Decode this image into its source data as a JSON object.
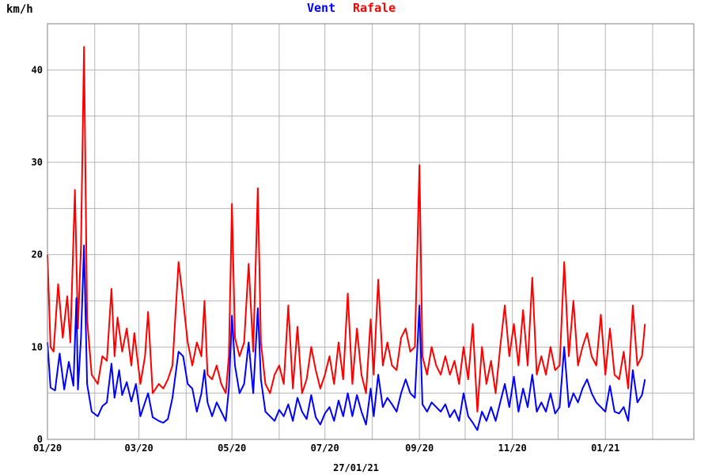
{
  "chart_data": {
    "type": "line",
    "ylabel": "km/h",
    "ylim": [
      0,
      45
    ],
    "yticks": [
      0,
      10,
      20,
      30,
      40
    ],
    "xlim": [
      "2020-01-01",
      "2021-02-28"
    ],
    "xticks": [
      {
        "date": "2020-01-01",
        "label": "01/20"
      },
      {
        "date": "2020-03-01",
        "label": "03/20"
      },
      {
        "date": "2020-05-01",
        "label": "05/20"
      },
      {
        "date": "2020-07-01",
        "label": "07/20"
      },
      {
        "date": "2020-09-01",
        "label": "09/20"
      },
      {
        "date": "2020-11-01",
        "label": "11/20"
      },
      {
        "date": "2021-01-01",
        "label": "01/21"
      }
    ],
    "date_label": "27/01/21",
    "grid": true,
    "series": [
      {
        "name": "Vent",
        "color": "#0000ff",
        "points": [
          [
            "2020-01-01",
            10.5
          ],
          [
            "2020-01-03",
            5.6
          ],
          [
            "2020-01-06",
            5.3
          ],
          [
            "2020-01-09",
            9.3
          ],
          [
            "2020-01-12",
            5.4
          ],
          [
            "2020-01-15",
            8.4
          ],
          [
            "2020-01-18",
            5.8
          ],
          [
            "2020-01-20",
            15.3
          ],
          [
            "2020-01-21",
            5.4
          ],
          [
            "2020-01-23",
            11.0
          ],
          [
            "2020-01-25",
            21.0
          ],
          [
            "2020-01-27",
            6.0
          ],
          [
            "2020-01-30",
            3.0
          ],
          [
            "2020-02-03",
            2.5
          ],
          [
            "2020-02-06",
            3.6
          ],
          [
            "2020-02-09",
            4.0
          ],
          [
            "2020-02-12",
            8.2
          ],
          [
            "2020-02-14",
            4.5
          ],
          [
            "2020-02-17",
            7.5
          ],
          [
            "2020-02-19",
            4.8
          ],
          [
            "2020-02-22",
            6.2
          ],
          [
            "2020-02-25",
            4.1
          ],
          [
            "2020-02-28",
            6.0
          ],
          [
            "2020-03-02",
            2.5
          ],
          [
            "2020-03-05",
            4.0
          ],
          [
            "2020-03-07",
            5.0
          ],
          [
            "2020-03-10",
            2.4
          ],
          [
            "2020-03-14",
            2.0
          ],
          [
            "2020-03-17",
            1.8
          ],
          [
            "2020-03-20",
            2.2
          ],
          [
            "2020-03-23",
            4.5
          ],
          [
            "2020-03-27",
            9.5
          ],
          [
            "2020-03-30",
            9.0
          ],
          [
            "2020-04-02",
            6.0
          ],
          [
            "2020-04-05",
            5.5
          ],
          [
            "2020-04-08",
            3.0
          ],
          [
            "2020-04-11",
            5.0
          ],
          [
            "2020-04-13",
            7.5
          ],
          [
            "2020-04-15",
            4.0
          ],
          [
            "2020-04-18",
            2.5
          ],
          [
            "2020-04-21",
            4.0
          ],
          [
            "2020-04-24",
            3.0
          ],
          [
            "2020-04-27",
            2.0
          ],
          [
            "2020-04-29",
            5.5
          ],
          [
            "2020-05-01",
            13.4
          ],
          [
            "2020-05-03",
            8.0
          ],
          [
            "2020-05-06",
            5.0
          ],
          [
            "2020-05-09",
            6.0
          ],
          [
            "2020-05-12",
            10.5
          ],
          [
            "2020-05-15",
            5.0
          ],
          [
            "2020-05-18",
            14.2
          ],
          [
            "2020-05-20",
            6.5
          ],
          [
            "2020-05-23",
            3.0
          ],
          [
            "2020-05-26",
            2.5
          ],
          [
            "2020-05-29",
            2.0
          ],
          [
            "2020-06-01",
            3.2
          ],
          [
            "2020-06-04",
            2.5
          ],
          [
            "2020-06-07",
            3.8
          ],
          [
            "2020-06-10",
            2.0
          ],
          [
            "2020-06-13",
            4.5
          ],
          [
            "2020-06-16",
            3.0
          ],
          [
            "2020-06-19",
            2.2
          ],
          [
            "2020-06-22",
            4.8
          ],
          [
            "2020-06-25",
            2.4
          ],
          [
            "2020-06-28",
            1.6
          ],
          [
            "2020-07-01",
            2.8
          ],
          [
            "2020-07-04",
            3.5
          ],
          [
            "2020-07-07",
            2.0
          ],
          [
            "2020-07-10",
            4.2
          ],
          [
            "2020-07-13",
            2.5
          ],
          [
            "2020-07-16",
            5.0
          ],
          [
            "2020-07-19",
            2.5
          ],
          [
            "2020-07-22",
            4.8
          ],
          [
            "2020-07-25",
            3.0
          ],
          [
            "2020-07-28",
            1.6
          ],
          [
            "2020-07-31",
            5.5
          ],
          [
            "2020-08-02",
            2.5
          ],
          [
            "2020-08-05",
            7.0
          ],
          [
            "2020-08-08",
            3.5
          ],
          [
            "2020-08-11",
            4.5
          ],
          [
            "2020-08-14",
            3.8
          ],
          [
            "2020-08-17",
            3.0
          ],
          [
            "2020-08-20",
            5.0
          ],
          [
            "2020-08-23",
            6.5
          ],
          [
            "2020-08-26",
            5.0
          ],
          [
            "2020-08-29",
            4.5
          ],
          [
            "2020-09-01",
            14.5
          ],
          [
            "2020-09-03",
            3.8
          ],
          [
            "2020-09-06",
            3.0
          ],
          [
            "2020-09-09",
            4.0
          ],
          [
            "2020-09-12",
            3.5
          ],
          [
            "2020-09-15",
            3.0
          ],
          [
            "2020-09-18",
            3.8
          ],
          [
            "2020-09-21",
            2.4
          ],
          [
            "2020-09-24",
            3.2
          ],
          [
            "2020-09-27",
            2.0
          ],
          [
            "2020-09-30",
            5.0
          ],
          [
            "2020-10-03",
            2.5
          ],
          [
            "2020-10-06",
            1.8
          ],
          [
            "2020-10-09",
            1.0
          ],
          [
            "2020-10-12",
            3.0
          ],
          [
            "2020-10-15",
            2.0
          ],
          [
            "2020-10-18",
            3.5
          ],
          [
            "2020-10-21",
            2.0
          ],
          [
            "2020-10-24",
            4.0
          ],
          [
            "2020-10-27",
            6.0
          ],
          [
            "2020-10-30",
            3.5
          ],
          [
            "2020-11-02",
            6.8
          ],
          [
            "2020-11-05",
            3.0
          ],
          [
            "2020-11-08",
            5.5
          ],
          [
            "2020-11-11",
            3.5
          ],
          [
            "2020-11-14",
            7.0
          ],
          [
            "2020-11-17",
            3.0
          ],
          [
            "2020-11-20",
            4.0
          ],
          [
            "2020-11-23",
            3.0
          ],
          [
            "2020-11-26",
            5.0
          ],
          [
            "2020-11-29",
            2.8
          ],
          [
            "2020-12-02",
            3.5
          ],
          [
            "2020-12-05",
            10.0
          ],
          [
            "2020-12-08",
            3.5
          ],
          [
            "2020-12-11",
            5.0
          ],
          [
            "2020-12-14",
            4.0
          ],
          [
            "2020-12-17",
            5.5
          ],
          [
            "2020-12-20",
            6.5
          ],
          [
            "2020-12-23",
            5.0
          ],
          [
            "2020-12-26",
            4.0
          ],
          [
            "2020-12-29",
            3.5
          ],
          [
            "2021-01-01",
            3.0
          ],
          [
            "2021-01-04",
            5.8
          ],
          [
            "2021-01-07",
            3.0
          ],
          [
            "2021-01-10",
            2.8
          ],
          [
            "2021-01-13",
            3.5
          ],
          [
            "2021-01-16",
            2.0
          ],
          [
            "2021-01-19",
            7.5
          ],
          [
            "2021-01-22",
            4.0
          ],
          [
            "2021-01-25",
            4.8
          ],
          [
            "2021-01-27",
            6.5
          ]
        ]
      },
      {
        "name": "Rafale",
        "color": "#ff0000",
        "points": [
          [
            "2020-01-01",
            20.0
          ],
          [
            "2020-01-03",
            10.0
          ],
          [
            "2020-01-05",
            9.5
          ],
          [
            "2020-01-08",
            16.8
          ],
          [
            "2020-01-11",
            11.0
          ],
          [
            "2020-01-14",
            15.5
          ],
          [
            "2020-01-16",
            10.5
          ],
          [
            "2020-01-19",
            27.0
          ],
          [
            "2020-01-21",
            12.0
          ],
          [
            "2020-01-23",
            21.0
          ],
          [
            "2020-01-25",
            42.5
          ],
          [
            "2020-01-27",
            13.0
          ],
          [
            "2020-01-30",
            7.0
          ],
          [
            "2020-02-03",
            6.0
          ],
          [
            "2020-02-06",
            9.0
          ],
          [
            "2020-02-09",
            8.5
          ],
          [
            "2020-02-12",
            16.3
          ],
          [
            "2020-02-14",
            9.0
          ],
          [
            "2020-02-16",
            13.2
          ],
          [
            "2020-02-19",
            9.5
          ],
          [
            "2020-02-22",
            12.0
          ],
          [
            "2020-02-25",
            8.0
          ],
          [
            "2020-02-27",
            11.5
          ],
          [
            "2020-03-02",
            6.0
          ],
          [
            "2020-03-05",
            9.0
          ],
          [
            "2020-03-07",
            13.8
          ],
          [
            "2020-03-10",
            5.0
          ],
          [
            "2020-03-14",
            6.0
          ],
          [
            "2020-03-17",
            5.5
          ],
          [
            "2020-03-20",
            6.5
          ],
          [
            "2020-03-23",
            8.0
          ],
          [
            "2020-03-27",
            19.2
          ],
          [
            "2020-03-30",
            15.0
          ],
          [
            "2020-04-02",
            10.5
          ],
          [
            "2020-04-05",
            8.0
          ],
          [
            "2020-04-08",
            10.5
          ],
          [
            "2020-04-11",
            9.0
          ],
          [
            "2020-04-13",
            15.0
          ],
          [
            "2020-04-15",
            7.0
          ],
          [
            "2020-04-18",
            6.5
          ],
          [
            "2020-04-21",
            8.0
          ],
          [
            "2020-04-24",
            6.0
          ],
          [
            "2020-04-27",
            5.0
          ],
          [
            "2020-04-29",
            9.0
          ],
          [
            "2020-05-01",
            25.5
          ],
          [
            "2020-05-03",
            11.0
          ],
          [
            "2020-05-06",
            9.0
          ],
          [
            "2020-05-09",
            10.5
          ],
          [
            "2020-05-12",
            19.0
          ],
          [
            "2020-05-15",
            9.5
          ],
          [
            "2020-05-18",
            27.2
          ],
          [
            "2020-05-20",
            10.5
          ],
          [
            "2020-05-23",
            6.0
          ],
          [
            "2020-05-26",
            5.0
          ],
          [
            "2020-05-29",
            7.0
          ],
          [
            "2020-06-01",
            8.0
          ],
          [
            "2020-06-04",
            6.0
          ],
          [
            "2020-06-07",
            14.5
          ],
          [
            "2020-06-10",
            5.5
          ],
          [
            "2020-06-13",
            12.2
          ],
          [
            "2020-06-16",
            5.0
          ],
          [
            "2020-06-19",
            6.5
          ],
          [
            "2020-06-22",
            10.0
          ],
          [
            "2020-06-25",
            7.5
          ],
          [
            "2020-06-28",
            5.5
          ],
          [
            "2020-07-01",
            7.0
          ],
          [
            "2020-07-04",
            9.0
          ],
          [
            "2020-07-07",
            6.0
          ],
          [
            "2020-07-10",
            10.5
          ],
          [
            "2020-07-13",
            6.5
          ],
          [
            "2020-07-16",
            15.8
          ],
          [
            "2020-07-19",
            6.0
          ],
          [
            "2020-07-22",
            12.0
          ],
          [
            "2020-07-25",
            7.0
          ],
          [
            "2020-07-28",
            5.0
          ],
          [
            "2020-07-31",
            13.0
          ],
          [
            "2020-08-02",
            7.0
          ],
          [
            "2020-08-05",
            17.3
          ],
          [
            "2020-08-08",
            8.0
          ],
          [
            "2020-08-11",
            10.5
          ],
          [
            "2020-08-14",
            8.0
          ],
          [
            "2020-08-17",
            7.5
          ],
          [
            "2020-08-20",
            11.0
          ],
          [
            "2020-08-23",
            12.0
          ],
          [
            "2020-08-26",
            9.5
          ],
          [
            "2020-08-29",
            10.0
          ],
          [
            "2020-09-01",
            29.7
          ],
          [
            "2020-09-03",
            9.0
          ],
          [
            "2020-09-06",
            7.0
          ],
          [
            "2020-09-09",
            10.0
          ],
          [
            "2020-09-12",
            8.0
          ],
          [
            "2020-09-15",
            7.0
          ],
          [
            "2020-09-18",
            9.0
          ],
          [
            "2020-09-21",
            7.0
          ],
          [
            "2020-09-24",
            8.5
          ],
          [
            "2020-09-27",
            6.0
          ],
          [
            "2020-09-30",
            10.0
          ],
          [
            "2020-10-03",
            6.5
          ],
          [
            "2020-10-06",
            12.5
          ],
          [
            "2020-10-09",
            3.0
          ],
          [
            "2020-10-12",
            10.0
          ],
          [
            "2020-10-15",
            6.0
          ],
          [
            "2020-10-18",
            8.5
          ],
          [
            "2020-10-21",
            5.0
          ],
          [
            "2020-10-24",
            10.0
          ],
          [
            "2020-10-27",
            14.5
          ],
          [
            "2020-10-30",
            9.0
          ],
          [
            "2020-11-02",
            12.5
          ],
          [
            "2020-11-05",
            8.0
          ],
          [
            "2020-11-08",
            14.0
          ],
          [
            "2020-11-11",
            8.0
          ],
          [
            "2020-11-14",
            17.5
          ],
          [
            "2020-11-17",
            7.0
          ],
          [
            "2020-11-20",
            9.0
          ],
          [
            "2020-11-23",
            7.0
          ],
          [
            "2020-11-26",
            10.0
          ],
          [
            "2020-11-29",
            7.5
          ],
          [
            "2020-12-02",
            8.0
          ],
          [
            "2020-12-05",
            19.2
          ],
          [
            "2020-12-08",
            9.0
          ],
          [
            "2020-12-11",
            15.0
          ],
          [
            "2020-12-14",
            8.0
          ],
          [
            "2020-12-17",
            10.0
          ],
          [
            "2020-12-20",
            11.5
          ],
          [
            "2020-12-23",
            9.0
          ],
          [
            "2020-12-26",
            8.0
          ],
          [
            "2020-12-29",
            13.5
          ],
          [
            "2021-01-01",
            7.0
          ],
          [
            "2021-01-04",
            12.0
          ],
          [
            "2021-01-07",
            7.0
          ],
          [
            "2021-01-10",
            6.5
          ],
          [
            "2021-01-13",
            9.5
          ],
          [
            "2021-01-16",
            5.5
          ],
          [
            "2021-01-19",
            14.5
          ],
          [
            "2021-01-22",
            8.0
          ],
          [
            "2021-01-25",
            9.0
          ],
          [
            "2021-01-27",
            12.5
          ]
        ]
      }
    ]
  }
}
